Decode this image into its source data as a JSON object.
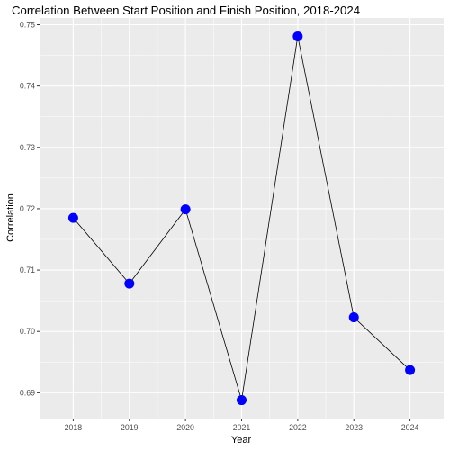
{
  "chart_data": {
    "type": "line",
    "title": "Correlation Between Start Position and Finish Position, 2018-2024",
    "xlabel": "Year",
    "ylabel": "Correlation",
    "x": [
      2018,
      2019,
      2020,
      2021,
      2022,
      2023,
      2024
    ],
    "x_tick_labels": [
      "2018",
      "2019",
      "2020",
      "2021",
      "2022",
      "2023",
      "2024"
    ],
    "values": [
      0.7185,
      0.7078,
      0.7199,
      0.6888,
      0.7481,
      0.7023,
      0.6937
    ],
    "y_ticks": [
      0.69,
      0.7,
      0.71,
      0.72,
      0.73,
      0.74,
      0.75
    ],
    "y_tick_labels": [
      "0.69",
      "0.70",
      "0.71",
      "0.72",
      "0.73",
      "0.74",
      "0.75"
    ],
    "ylim": [
      0.6858,
      0.7511
    ],
    "xlim": [
      2017.4,
      2024.6
    ],
    "grid": true,
    "legend": "none",
    "colors": {
      "panel_background": "#ebebeb",
      "grid": "#ffffff",
      "line": "#000000",
      "point": "#0000ff"
    }
  }
}
